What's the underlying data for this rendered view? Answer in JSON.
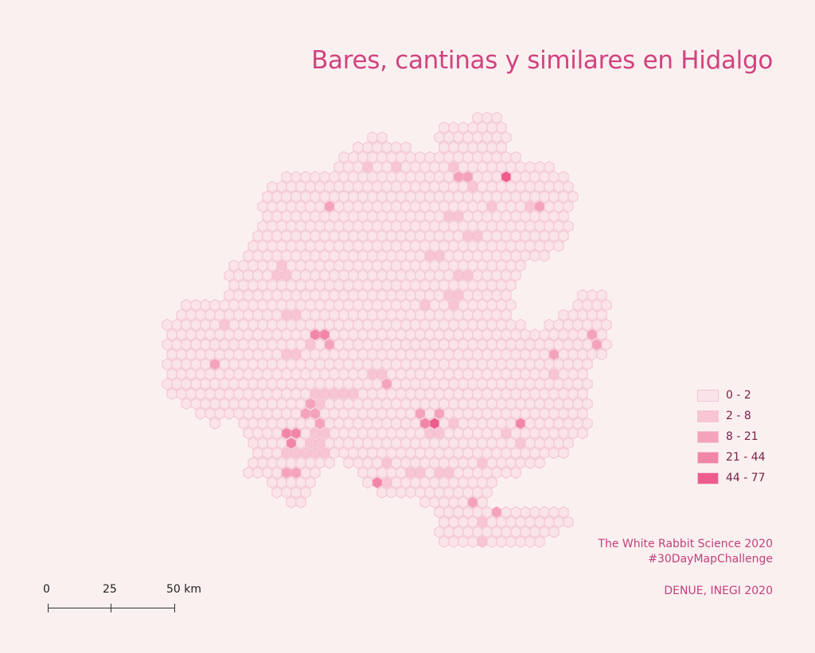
{
  "title": "Bares, cantinas y similares en Hidalgo",
  "colors": {
    "background": "#fbf0f0",
    "hex_stroke": "#f0b8cb",
    "class_colors": [
      "#fae4ea",
      "#f8c5d5",
      "#f5a3bd",
      "#f286a8",
      "#ee5c8e"
    ]
  },
  "legend": {
    "items": [
      {
        "label": "0 - 2",
        "color": "#fae4ea"
      },
      {
        "label": "2 - 8",
        "color": "#f8c5d5"
      },
      {
        "label": "8 - 21",
        "color": "#f5a3bd"
      },
      {
        "label": "21 - 44",
        "color": "#f286a8"
      },
      {
        "label": "44 - 77",
        "color": "#ee5c8e"
      }
    ]
  },
  "credits": {
    "line1": "The White Rabbit Science 2020",
    "line2": "#30DayMapChallenge",
    "source": "DENUE, INEGI 2020"
  },
  "scale_bar": {
    "labels": [
      "0",
      "25",
      "50 km"
    ]
  }
}
